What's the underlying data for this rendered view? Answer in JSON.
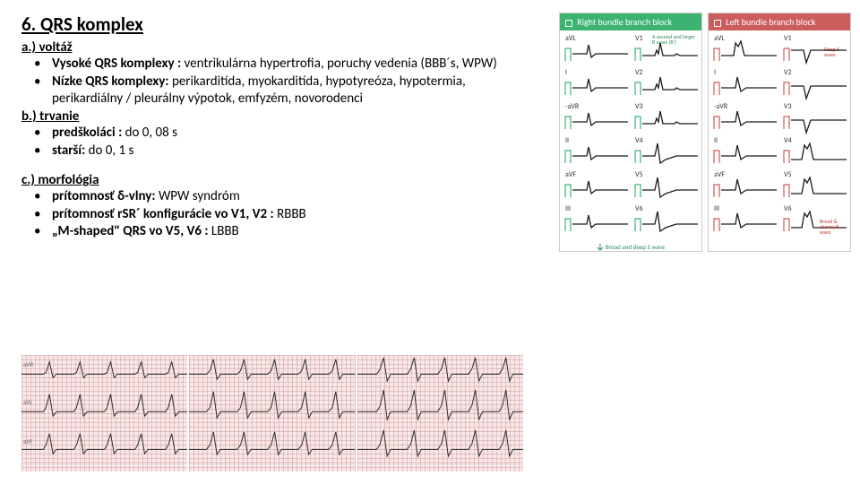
{
  "title": "6. QRS komplex",
  "section_a": {
    "head": "a.) voltáž",
    "items": [
      {
        "lead": "Vysoké QRS komplexy :",
        "rest": " ventrikulárna hypertrofia, poruchy vedenia (BBB´s, WPW)"
      },
      {
        "lead": "Nízke QRS komplexy:",
        "rest": " perikarditída, myokarditída, hypotyreóza, hypotermia, perikardiálny / pleurálny výpotok, emfyzém, novorodenci"
      }
    ]
  },
  "section_b": {
    "head": "b.) trvanie",
    "items": [
      {
        "lead": "predškoláci :",
        "rest": " do 0, 08 s"
      },
      {
        "lead": "starší:",
        "rest": " do 0, 1 s"
      }
    ]
  },
  "section_c": {
    "head": "c.) morfológia",
    "items": [
      {
        "lead": "prítomnosť δ-vlny:",
        "rest": " WPW syndróm"
      },
      {
        "lead": "prítomnosť rSR´ konfigurácie vo V1, V2 :",
        "rest": " RBBB"
      },
      {
        "lead": "„M-shaped\" QRS vo V5, V6 :",
        "rest": " LBBB"
      }
    ]
  },
  "ecg_leads": [
    "aVR",
    "aVL",
    "aVF"
  ],
  "blocks": {
    "rbbb": {
      "title": "Right bundle branch block",
      "leads": [
        [
          "aVL",
          "V1"
        ],
        [
          "I",
          "V2"
        ],
        [
          "-aVR",
          "V3"
        ],
        [
          "II",
          "V4"
        ],
        [
          "aVF",
          "V5"
        ],
        [
          "III",
          "V6"
        ]
      ],
      "top_annot": "A second and larger R wave (R')",
      "bottom_annot": "Broad and deep S wave",
      "accent": "#3cb371"
    },
    "lbbb": {
      "title": "Left bundle branch block",
      "leads": [
        [
          "aVL",
          "V1"
        ],
        [
          "I",
          "V2"
        ],
        [
          "-aVR",
          "V3"
        ],
        [
          "II",
          "V4"
        ],
        [
          "aVF",
          "V5"
        ],
        [
          "III",
          "V6"
        ]
      ],
      "top_annot": "Deep S wave",
      "side_annot": "Broad & clumsy R wave",
      "accent": "#cd5c5c"
    }
  },
  "colors": {
    "text": "#000000",
    "ecg_bg": "#f6e8e8",
    "ecg_grid": "rgba(200,120,120,0.35)",
    "trace": "#2a2a2a",
    "rbbb": "#3cb371",
    "lbbb": "#cd5c5c"
  }
}
